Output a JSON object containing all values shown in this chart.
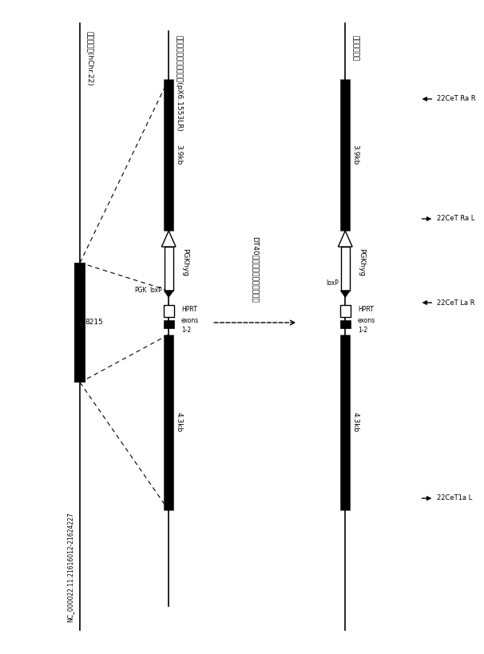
{
  "bg_color": "#ffffff",
  "left_label_top": "正常アレル(hChr.22)",
  "left_label_mid": "ターゲティングベクター(pX6.1553LR)",
  "left_coord": "NC_000022.11:21616012-21624227",
  "left_coord2": "8215",
  "arrow_label": "DT40細胞における相同組換え",
  "right_label_top": "組換えアレル",
  "pgkhyg_label": "PGKhyg",
  "pgk_label": "PGK",
  "loxp_label": "loxP",
  "hprt_label": "HPRT",
  "exons_label1": "exons",
  "exons_label2": "1-2",
  "kb_39": "3.9kb",
  "kb_43": "4.3kb",
  "primer_1aL": "22CeT1a L",
  "primer_LaR": "22CeT La R",
  "primer_RaL": "22CeT Ra L",
  "primer_RaR": "22CeT Ra R"
}
